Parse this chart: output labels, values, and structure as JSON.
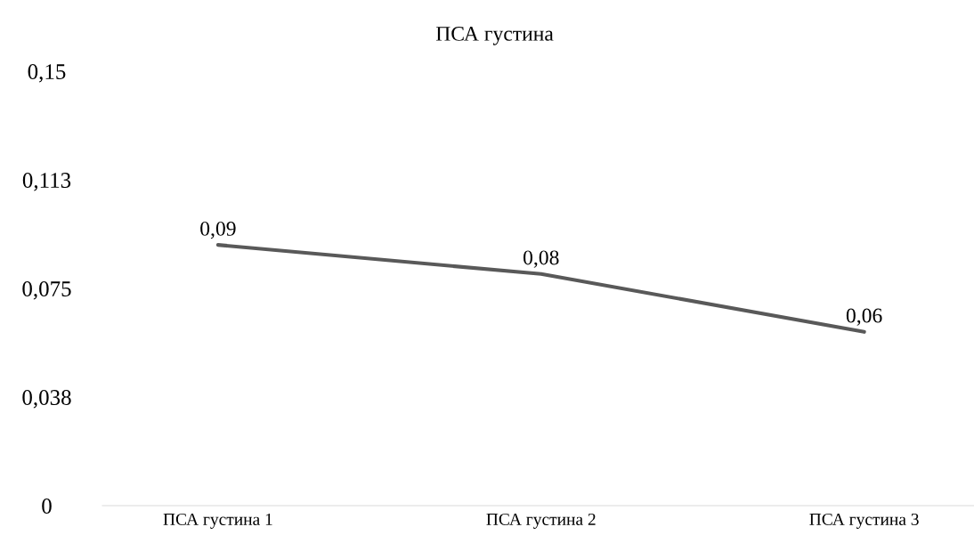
{
  "chart_data": {
    "type": "line",
    "title": "ПСА густина",
    "categories": [
      "ПСА густина 1",
      "ПСА густина 2",
      "ПСА густина 3"
    ],
    "series": [
      {
        "color": "#595959",
        "values": [
          0.09,
          0.08,
          0.06
        ]
      }
    ],
    "value_labels": [
      "0,09",
      "0,08",
      "0,06"
    ],
    "ylim": [
      0,
      0.15
    ],
    "yticks": [
      {
        "value": 0,
        "label": "0"
      },
      {
        "value": 0.0375,
        "label": "0,038"
      },
      {
        "value": 0.075,
        "label": "0,075"
      },
      {
        "value": 0.1125,
        "label": "0,113"
      },
      {
        "value": 0.15,
        "label": "0,15"
      }
    ],
    "grid": false,
    "legend": false,
    "marker": "none",
    "line_style": "solid"
  }
}
